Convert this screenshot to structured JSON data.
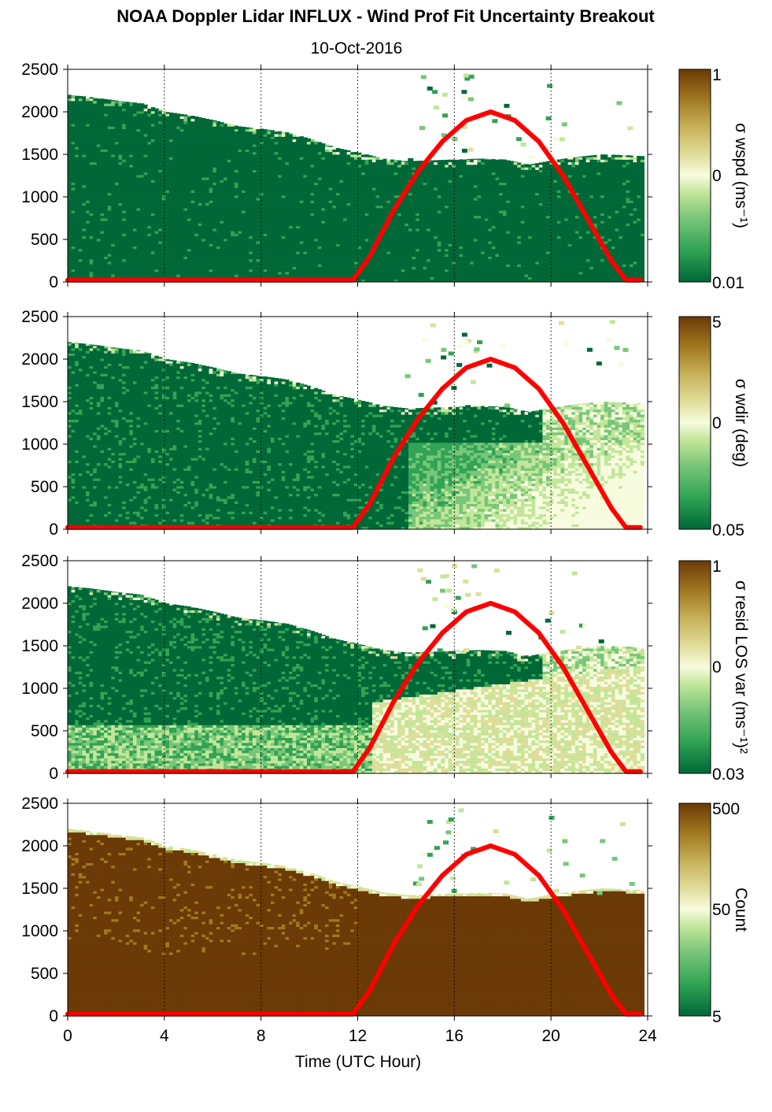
{
  "title": "NOAA Doppler Lidar INFLUX - Wind Prof Fit Uncertainty Breakout",
  "subtitle": "10-Oct-2016",
  "xlabel": "Time (UTC Hour)",
  "colors": {
    "cmap": [
      "#006837",
      "#31a354",
      "#78c679",
      "#c2e699",
      "#f7fcde",
      "#e0dd9a",
      "#c9b45e",
      "#a07820",
      "#6b3a06"
    ],
    "sun_curve": "#ff0000",
    "axis": "#000000",
    "grid": "#000000"
  },
  "chart_data": [
    {
      "type": "heatmap",
      "panel": "sigma_wspd",
      "xlim": [
        0,
        24
      ],
      "ylim": [
        0,
        2500
      ],
      "xticks": [
        "0",
        "4",
        "8",
        "12",
        "16",
        "20",
        "24"
      ],
      "yticks": [
        "0",
        "500",
        "1000",
        "1500",
        "2000",
        "2500"
      ],
      "grid_x": [
        4,
        8,
        12,
        16,
        20,
        24
      ],
      "colorbar": {
        "label": "σ wspd (ms⁻¹)",
        "ticks": [
          "1",
          "0",
          "0.01"
        ],
        "scale": "log"
      },
      "top_height_m": [
        [
          0,
          2200
        ],
        [
          1,
          2170
        ],
        [
          2,
          2130
        ],
        [
          3,
          2100
        ],
        [
          4,
          2000
        ],
        [
          5,
          1960
        ],
        [
          6,
          1900
        ],
        [
          7,
          1830
        ],
        [
          8,
          1800
        ],
        [
          9,
          1760
        ],
        [
          10,
          1680
        ],
        [
          11,
          1580
        ],
        [
          12,
          1520
        ],
        [
          13,
          1450
        ],
        [
          14,
          1420
        ],
        [
          15,
          1430
        ],
        [
          16,
          1440
        ],
        [
          17,
          1450
        ],
        [
          18,
          1440
        ],
        [
          19,
          1380
        ],
        [
          20,
          1430
        ],
        [
          21,
          1470
        ],
        [
          22,
          1500
        ],
        [
          23,
          1490
        ],
        [
          23.7,
          1480
        ]
      ]
    },
    {
      "type": "heatmap",
      "panel": "sigma_wdir",
      "xlim": [
        0,
        24
      ],
      "ylim": [
        0,
        2500
      ],
      "xticks": [
        "0",
        "4",
        "8",
        "12",
        "16",
        "20",
        "24"
      ],
      "yticks": [
        "0",
        "500",
        "1000",
        "1500",
        "2000",
        "2500"
      ],
      "grid_x": [
        4,
        8,
        12,
        16,
        20,
        24
      ],
      "colorbar": {
        "label": "σ wdir (deg)",
        "ticks": [
          "5",
          "0",
          "0.05"
        ],
        "scale": "log"
      },
      "top_height_m": [
        [
          0,
          2200
        ],
        [
          1,
          2170
        ],
        [
          2,
          2130
        ],
        [
          3,
          2100
        ],
        [
          4,
          2000
        ],
        [
          5,
          1960
        ],
        [
          6,
          1900
        ],
        [
          7,
          1830
        ],
        [
          8,
          1800
        ],
        [
          9,
          1760
        ],
        [
          10,
          1680
        ],
        [
          11,
          1580
        ],
        [
          12,
          1520
        ],
        [
          13,
          1450
        ],
        [
          14,
          1420
        ],
        [
          15,
          1430
        ],
        [
          16,
          1440
        ],
        [
          17,
          1450
        ],
        [
          18,
          1440
        ],
        [
          19,
          1380
        ],
        [
          20,
          1430
        ],
        [
          21,
          1470
        ],
        [
          22,
          1500
        ],
        [
          23,
          1490
        ],
        [
          23.7,
          1480
        ]
      ]
    },
    {
      "type": "heatmap",
      "panel": "sigma_resid_los_var",
      "xlim": [
        0,
        24
      ],
      "ylim": [
        0,
        2500
      ],
      "xticks": [
        "0",
        "4",
        "8",
        "12",
        "16",
        "20",
        "24"
      ],
      "yticks": [
        "0",
        "500",
        "1000",
        "1500",
        "2000",
        "2500"
      ],
      "grid_x": [
        4,
        8,
        12,
        16,
        20,
        24
      ],
      "colorbar": {
        "label": "σ resid LOS var (ms⁻¹)²",
        "ticks": [
          "1",
          "0",
          "0.03"
        ],
        "scale": "log"
      },
      "top_height_m": [
        [
          0,
          2200
        ],
        [
          1,
          2170
        ],
        [
          2,
          2130
        ],
        [
          3,
          2100
        ],
        [
          4,
          2000
        ],
        [
          5,
          1960
        ],
        [
          6,
          1900
        ],
        [
          7,
          1830
        ],
        [
          8,
          1800
        ],
        [
          9,
          1760
        ],
        [
          10,
          1680
        ],
        [
          11,
          1580
        ],
        [
          12,
          1520
        ],
        [
          13,
          1450
        ],
        [
          14,
          1420
        ],
        [
          15,
          1430
        ],
        [
          16,
          1440
        ],
        [
          17,
          1450
        ],
        [
          18,
          1440
        ],
        [
          19,
          1380
        ],
        [
          20,
          1430
        ],
        [
          21,
          1470
        ],
        [
          22,
          1500
        ],
        [
          23,
          1490
        ],
        [
          23.7,
          1480
        ]
      ]
    },
    {
      "type": "heatmap",
      "panel": "count",
      "xlim": [
        0,
        24
      ],
      "ylim": [
        0,
        2500
      ],
      "xticks": [
        "0",
        "4",
        "8",
        "12",
        "16",
        "20",
        "24"
      ],
      "yticks": [
        "0",
        "500",
        "1000",
        "1500",
        "2000",
        "2500"
      ],
      "grid_x": [
        4,
        8,
        12,
        16,
        20,
        24
      ],
      "colorbar": {
        "label": "Count",
        "ticks": [
          "500",
          "50",
          "5"
        ],
        "scale": "log"
      },
      "top_height_m": [
        [
          0,
          2200
        ],
        [
          1,
          2170
        ],
        [
          2,
          2130
        ],
        [
          3,
          2100
        ],
        [
          4,
          2000
        ],
        [
          5,
          1960
        ],
        [
          6,
          1900
        ],
        [
          7,
          1830
        ],
        [
          8,
          1800
        ],
        [
          9,
          1760
        ],
        [
          10,
          1680
        ],
        [
          11,
          1580
        ],
        [
          12,
          1520
        ],
        [
          13,
          1450
        ],
        [
          14,
          1420
        ],
        [
          15,
          1430
        ],
        [
          16,
          1440
        ],
        [
          17,
          1450
        ],
        [
          18,
          1440
        ],
        [
          19,
          1380
        ],
        [
          20,
          1430
        ],
        [
          21,
          1470
        ],
        [
          22,
          1500
        ],
        [
          23,
          1490
        ],
        [
          23.7,
          1480
        ]
      ]
    }
  ],
  "sun_curve": {
    "series_color": "#ff0000",
    "x": [
      0,
      11.8,
      12.5,
      13.5,
      14.5,
      15.5,
      16.5,
      17.5,
      18.5,
      19.5,
      20.5,
      21.5,
      22.5,
      23.1,
      23.7
    ],
    "y": [
      20,
      20,
      300,
      850,
      1300,
      1650,
      1900,
      2000,
      1900,
      1650,
      1250,
      750,
      250,
      20,
      20
    ]
  }
}
